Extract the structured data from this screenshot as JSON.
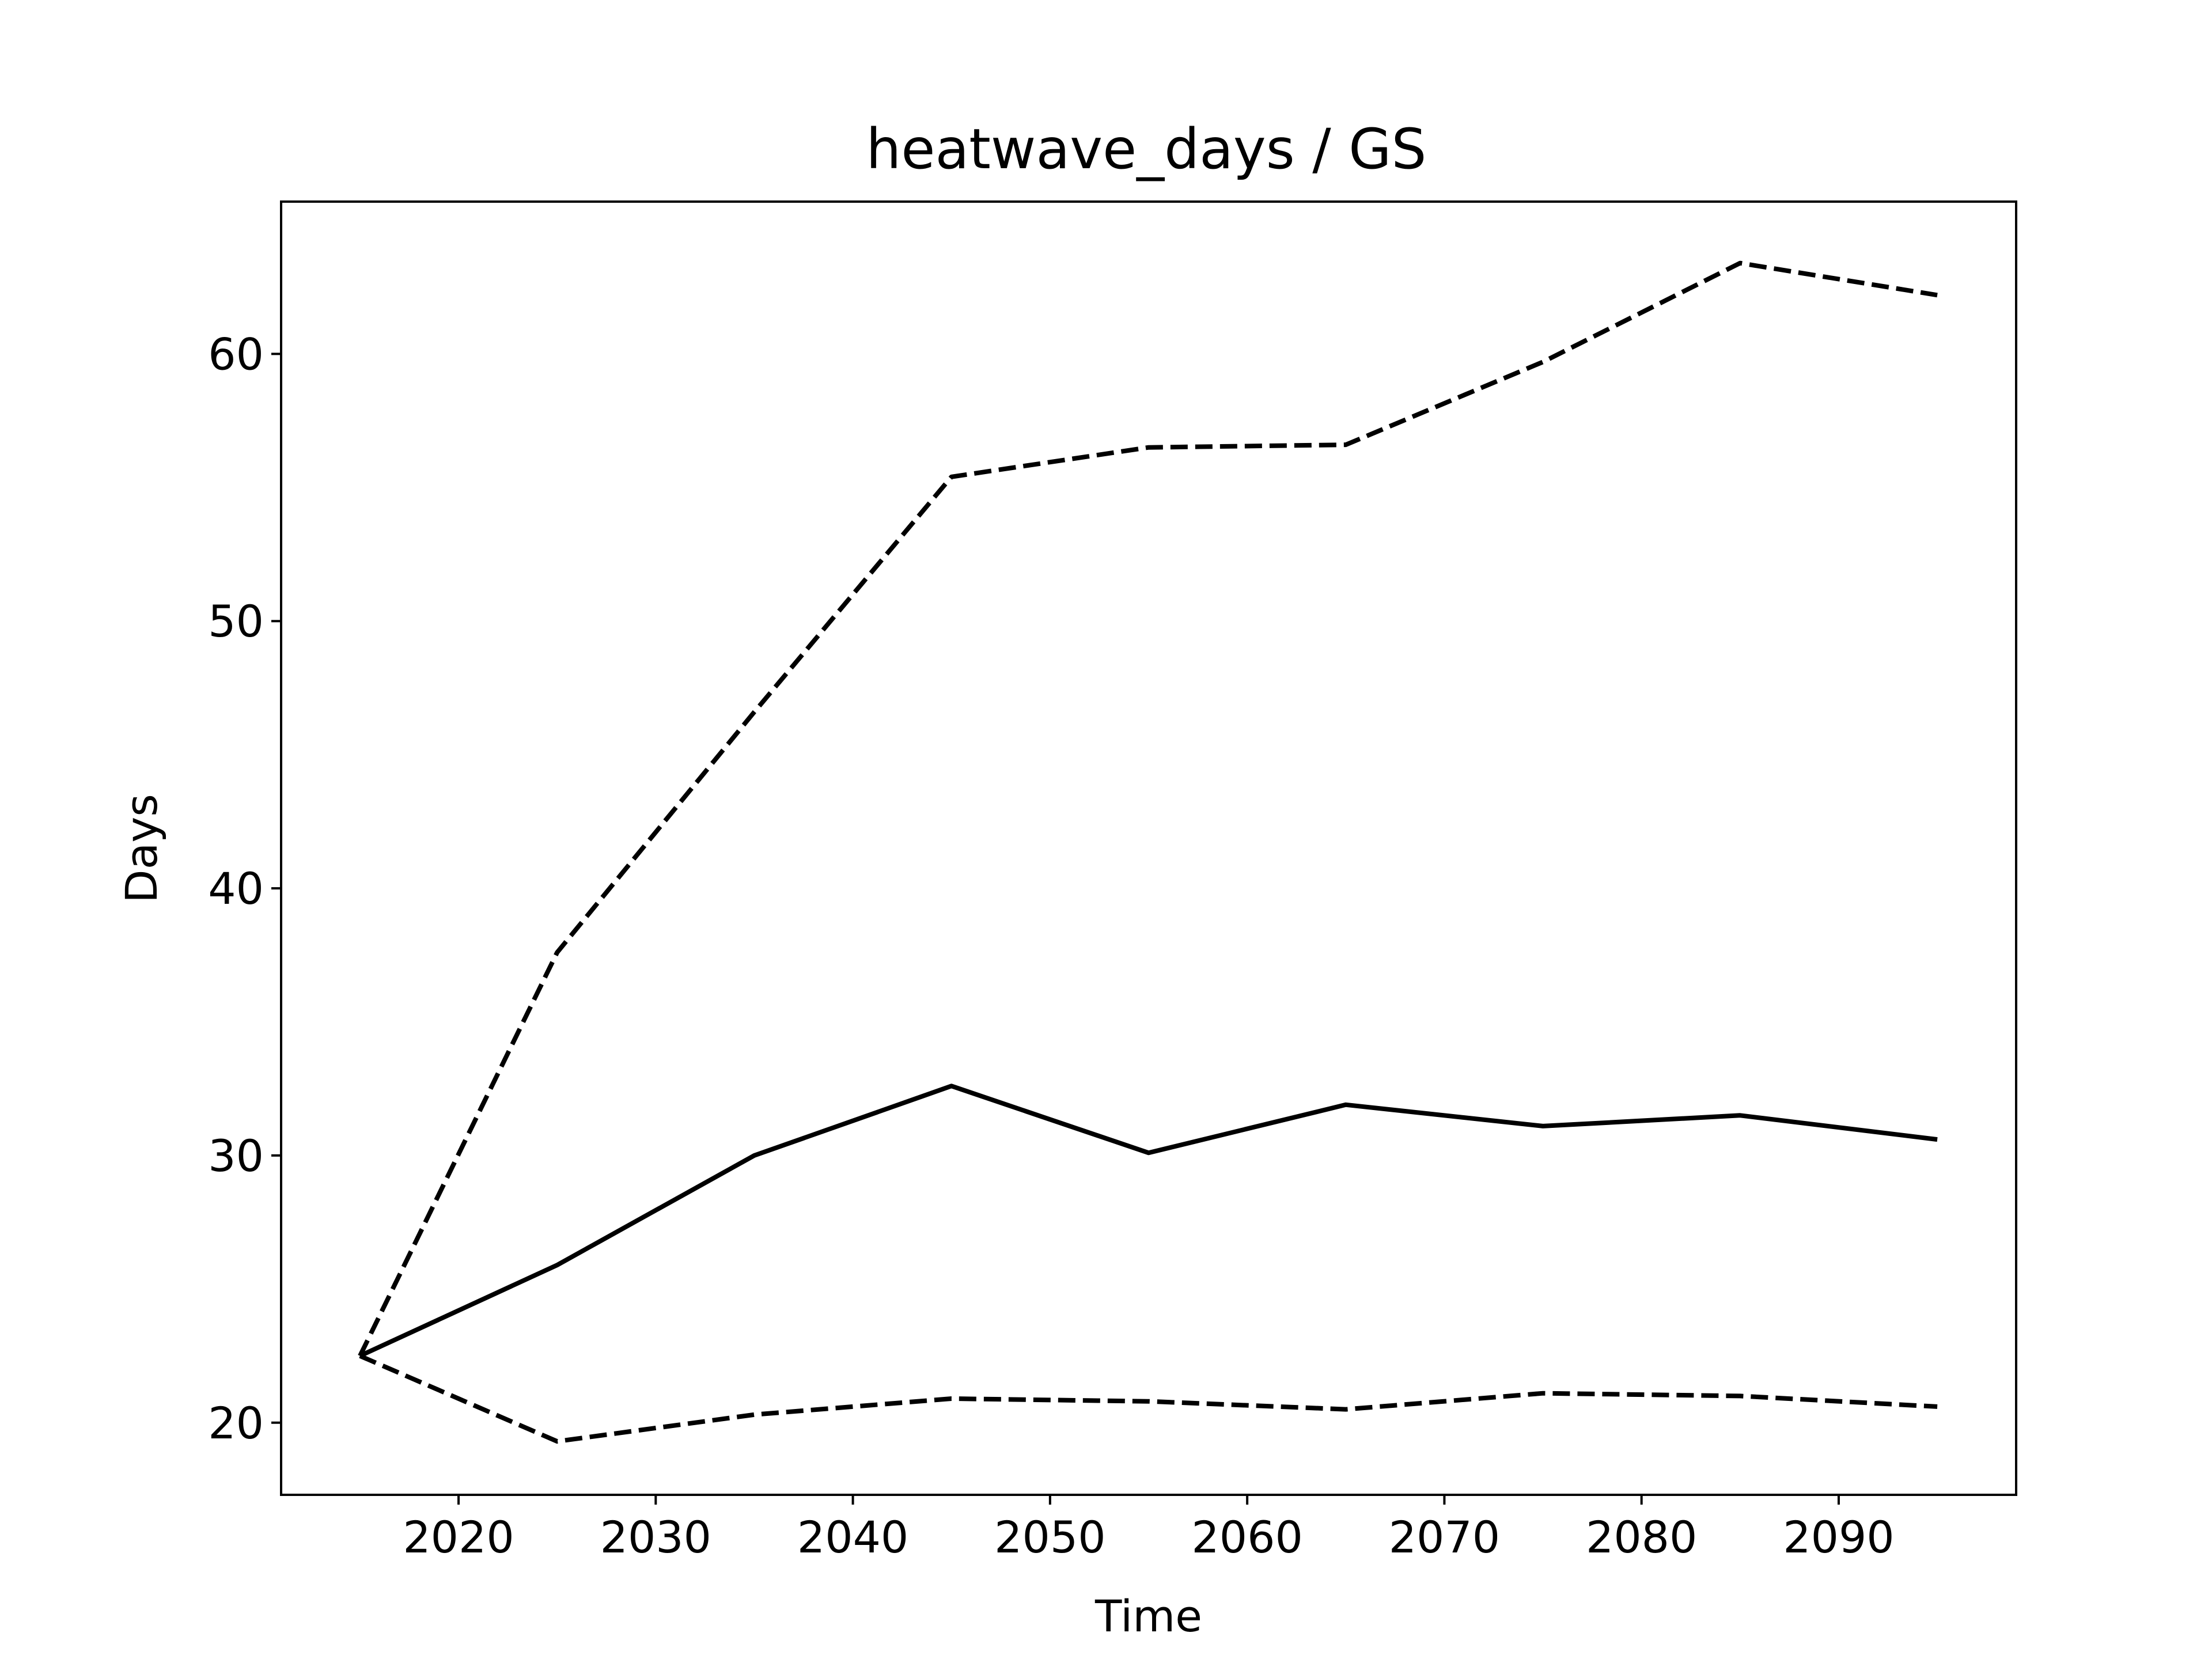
{
  "chart_data": {
    "type": "line",
    "title": "heatwave_days / GS",
    "xlabel": "Time",
    "ylabel": "Days",
    "xlim": [
      2011,
      2099
    ],
    "ylim": [
      17.3,
      65.7
    ],
    "grid": false,
    "legend": "none",
    "x_ticks": [
      2020,
      2030,
      2040,
      2050,
      2060,
      2070,
      2080,
      2090
    ],
    "y_ticks": [
      20,
      30,
      40,
      50,
      60
    ],
    "x": [
      2015,
      2025,
      2035,
      2045,
      2055,
      2065,
      2075,
      2085,
      2095
    ],
    "series": [
      {
        "style": "solid",
        "color": "#000000",
        "values": [
          22.5,
          25.9,
          30.0,
          32.6,
          30.1,
          31.9,
          31.1,
          31.5,
          30.6
        ]
      },
      {
        "style": "dashed",
        "color": "#000000",
        "values": [
          22.5,
          37.6,
          46.6,
          55.4,
          56.5,
          56.6,
          59.7,
          63.4,
          62.2
        ]
      },
      {
        "style": "dashed",
        "color": "#000000",
        "values": [
          22.5,
          19.3,
          20.3,
          20.9,
          20.8,
          20.5,
          21.1,
          21.0,
          20.6
        ]
      }
    ]
  }
}
